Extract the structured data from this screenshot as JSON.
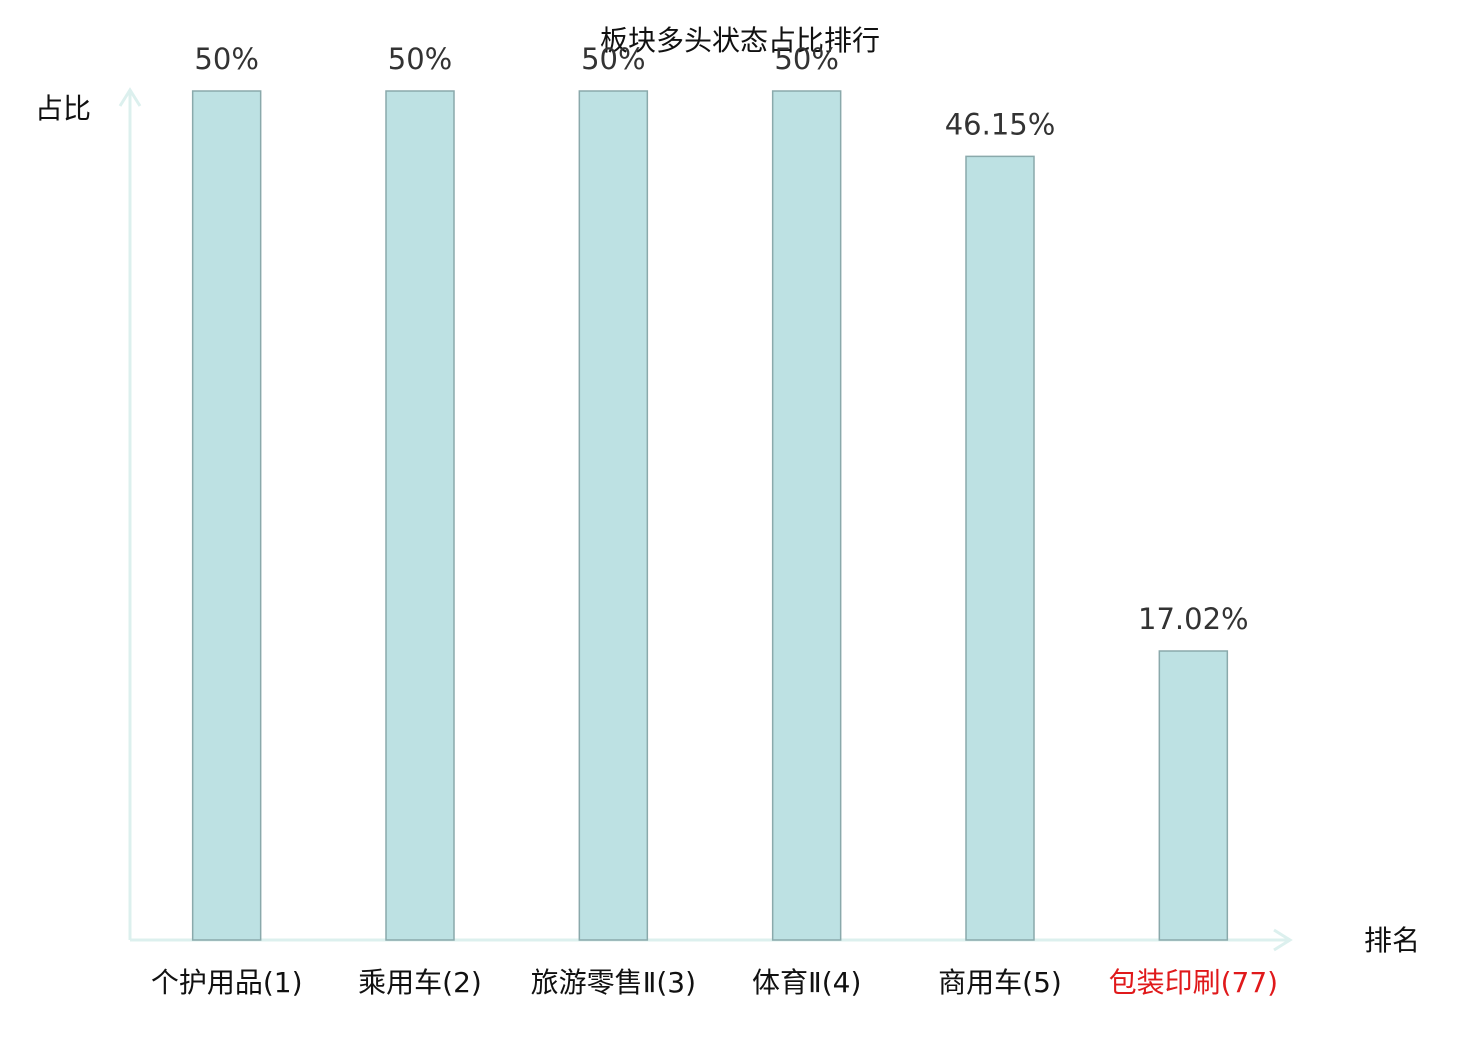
{
  "chart_data": {
    "type": "bar",
    "title": "板块多头状态占比排行",
    "y_label": "占比",
    "x_label": "排名",
    "categories": [
      "个护用品(1)",
      "乘用车(2)",
      "旅游零售Ⅱ(3)",
      "体育Ⅱ(4)",
      "商用车(5)",
      "包装印刷(77)"
    ],
    "category_colors": [
      "#111111",
      "#111111",
      "#111111",
      "#111111",
      "#111111",
      "#e0191b"
    ],
    "values": [
      50,
      50,
      50,
      50,
      46.15,
      17.02
    ],
    "value_labels": [
      "50%",
      "50%",
      "50%",
      "50%",
      "46.15%",
      "17.02%"
    ],
    "color": "#bde1e3",
    "edge_color": "#8aa9ab",
    "axis_color": "#dcf0ee",
    "ylim": [
      0,
      50
    ]
  }
}
